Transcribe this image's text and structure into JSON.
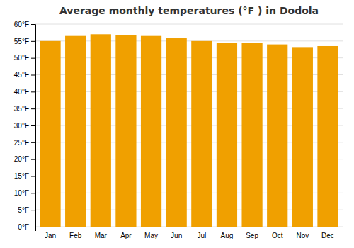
{
  "chart_data": {
    "type": "bar",
    "title": "Average monthly temperatures (°F ) in Dodola",
    "categories": [
      "Jan",
      "Feb",
      "Mar",
      "Apr",
      "May",
      "Jun",
      "Jul",
      "Aug",
      "Sep",
      "Oct",
      "Nov",
      "Dec"
    ],
    "values": [
      55.0,
      56.5,
      57.0,
      56.8,
      56.5,
      55.8,
      55.0,
      54.5,
      54.5,
      54.0,
      53.0,
      53.5
    ],
    "color": "#F0A000",
    "ylim": [
      0,
      60
    ],
    "yticks": [
      {
        "value": 0,
        "label": "0°F"
      },
      {
        "value": 5,
        "label": "5°F"
      },
      {
        "value": 10,
        "label": "10°F"
      },
      {
        "value": 15,
        "label": "15°F"
      },
      {
        "value": 20,
        "label": "20°F"
      },
      {
        "value": 25,
        "label": "25°F"
      },
      {
        "value": 30,
        "label": "30°F"
      },
      {
        "value": 35,
        "label": "35°F"
      },
      {
        "value": 40,
        "label": "40°F"
      },
      {
        "value": 45,
        "label": "45°F"
      },
      {
        "value": 50,
        "label": "50°F"
      },
      {
        "value": 55,
        "label": "55°F"
      },
      {
        "value": 60,
        "label": "60°F"
      }
    ],
    "grid": true
  }
}
